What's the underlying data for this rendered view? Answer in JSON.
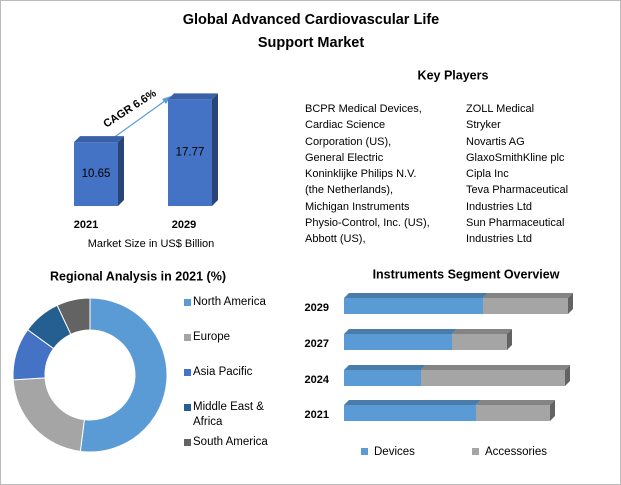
{
  "title": [
    "Global Advanced Cardiovascular Life",
    "Support Market"
  ],
  "key_players": {
    "title": "Key Players",
    "column_1": [
      "BCPR Medical Devices,",
      "Cardiac Science",
      "Corporation (US),",
      "General Electric",
      "Koninklijke Philips N.V.",
      "(the Netherlands),",
      "Michigan Instruments",
      "Physio-Control, Inc. (US),",
      "Abbott (US),"
    ],
    "column_2": [
      "ZOLL Medical",
      "Stryker",
      "Novartis AG",
      "GlaxoSmithKline plc",
      "Cipla Inc",
      "Teva Pharmaceutical",
      "Industries Ltd",
      "Sun Pharmaceutical",
      "Industries Ltd"
    ]
  },
  "chart_data": [
    {
      "type": "bar",
      "categories": [
        "2021",
        "2029"
      ],
      "values": [
        10.65,
        17.77
      ],
      "color": "#4472c4",
      "x_label": "Market Size in US$ Billion",
      "annotation": "CAGR 6.6%"
    },
    {
      "type": "donut",
      "title": "Regional Analysis in 2021 (%)",
      "categories": [
        "North America",
        "Europe",
        "Asia Pacific",
        "Middle East & Africa",
        "South America"
      ],
      "values": [
        52,
        22,
        11,
        8,
        7
      ],
      "colors": [
        "#5b9bd5",
        "#a5a5a5",
        "#4472c4",
        "#255e91",
        "#636363"
      ]
    },
    {
      "type": "bar",
      "orientation": "horizontal",
      "stacked": true,
      "title": "Instruments Segment Overview",
      "categories": [
        "2029",
        "2027",
        "2024",
        "2021"
      ],
      "series": [
        {
          "name": "Devices",
          "color": "#5b9bd5",
          "values": [
            139,
            108,
            77,
            132
          ]
        },
        {
          "name": "Accessories",
          "color": "#a5a5a5",
          "values": [
            85,
            55,
            144,
            74
          ]
        }
      ]
    }
  ]
}
